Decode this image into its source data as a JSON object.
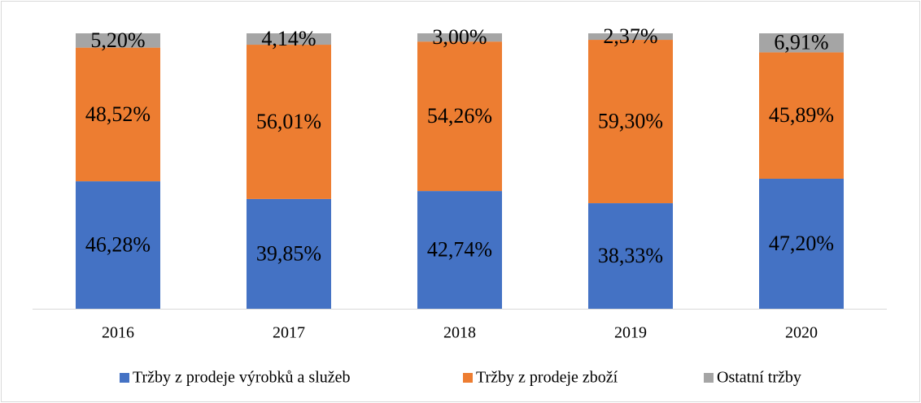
{
  "chart_data": {
    "type": "stacked_bar",
    "categories": [
      "2016",
      "2017",
      "2018",
      "2019",
      "2020"
    ],
    "ylim": [
      0,
      100
    ],
    "legend": "bottom",
    "series": [
      {
        "name": "Tržby z prodeje výrobků a služeb",
        "color": "#4472c4",
        "values": [
          46.28,
          39.85,
          42.74,
          38.33,
          47.2
        ],
        "value_labels": [
          "46,28%",
          "39,85%",
          "42,74%",
          "38,33%",
          "47,20%"
        ]
      },
      {
        "name": "Tržby z prodeje zboží",
        "color": "#ed7d31",
        "values": [
          48.52,
          56.01,
          54.26,
          59.3,
          45.89
        ],
        "value_labels": [
          "48,52%",
          "56,01%",
          "54,26%",
          "59,30%",
          "45,89%"
        ]
      },
      {
        "name": "Ostatní tržby",
        "color": "#a5a5a5",
        "values": [
          5.2,
          4.14,
          3.0,
          2.37,
          6.91
        ],
        "value_labels": [
          "5,20%",
          "4,14%",
          "3,00%",
          "2,37%",
          "6,91%"
        ]
      }
    ]
  }
}
